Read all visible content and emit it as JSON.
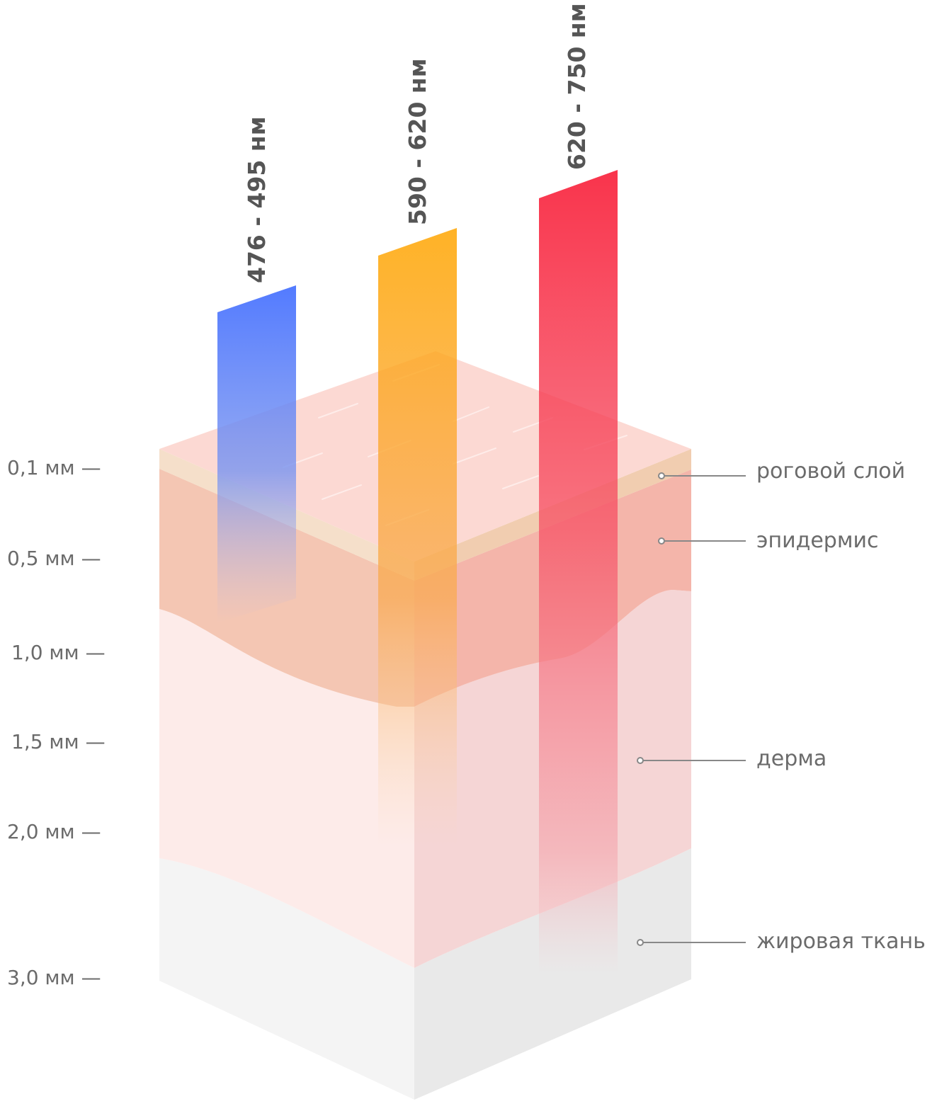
{
  "wavelengths": [
    {
      "label": "476 - 495 нм",
      "color": "#4a74ff"
    },
    {
      "label": "590 - 620 нм",
      "color": "#ffa500"
    },
    {
      "label": "620 - 750 нм",
      "color": "#f8102c"
    }
  ],
  "depth_scale": [
    "0,1 мм —",
    "0,5 мм —",
    "1,0 мм —",
    "1,5 мм —",
    "2,0 мм —",
    "3,0 мм —"
  ],
  "layers": [
    "роговой слой",
    "эпидермис",
    "дерма",
    "жировая ткань"
  ]
}
